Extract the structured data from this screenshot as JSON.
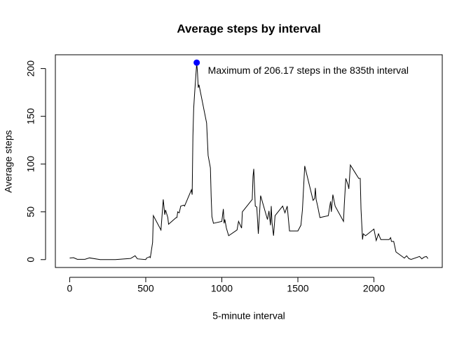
{
  "chart_data": {
    "type": "line",
    "title": "Average steps by interval",
    "x_label": "5-minute interval",
    "y_label": "Average steps",
    "xlim": [
      -94.2,
      2449.2
    ],
    "ylim": [
      -8.25,
      214.42
    ],
    "xticks": [
      0,
      500,
      1000,
      1500,
      2000
    ],
    "yticks": [
      0,
      50,
      100,
      150,
      200
    ],
    "grid": false,
    "x": [
      0,
      25,
      50,
      100,
      130,
      200,
      300,
      400,
      430,
      445,
      500,
      505,
      525,
      530,
      545,
      550,
      600,
      615,
      625,
      630,
      645,
      650,
      700,
      705,
      710,
      720,
      730,
      750,
      755,
      800,
      805,
      810,
      815,
      820,
      835,
      840,
      845,
      850,
      900,
      910,
      925,
      930,
      935,
      945,
      1000,
      1010,
      1015,
      1020,
      1030,
      1045,
      1100,
      1110,
      1130,
      1135,
      1150,
      1200,
      1205,
      1210,
      1220,
      1230,
      1240,
      1255,
      1300,
      1310,
      1320,
      1325,
      1330,
      1340,
      1350,
      1400,
      1415,
      1430,
      1445,
      1500,
      1520,
      1530,
      1545,
      1600,
      1610,
      1615,
      1620,
      1630,
      1645,
      1700,
      1715,
      1720,
      1730,
      1745,
      1800,
      1805,
      1815,
      1830,
      1835,
      1845,
      1900,
      1910,
      1915,
      1925,
      1930,
      1945,
      2000,
      2015,
      2030,
      2045,
      2100,
      2110,
      2115,
      2130,
      2145,
      2200,
      2215,
      2230,
      2245,
      2300,
      2315,
      2330,
      2345,
      2355
    ],
    "series": [
      {
        "name": "Average steps",
        "color": "#000000",
        "values": [
          1.7,
          2,
          0.3,
          0.3,
          1.8,
          0,
          0,
          1.2,
          4,
          0.8,
          0,
          1.6,
          3,
          2.1,
          18,
          46,
          31,
          63,
          47,
          52,
          44,
          37,
          44,
          44,
          50,
          49,
          56,
          57,
          56,
          73,
          68,
          129,
          158,
          171,
          206.17,
          196,
          180,
          183,
          143,
          109,
          96,
          66,
          45,
          38,
          40,
          53,
          38,
          42,
          33,
          25,
          31,
          40,
          33,
          50,
          53,
          63,
          87,
          95,
          56,
          55,
          27,
          67,
          42,
          51,
          36,
          56,
          39,
          25,
          46,
          56,
          49,
          56,
          30,
          30,
          36,
          52,
          98,
          62,
          64,
          75,
          63,
          56,
          44,
          46,
          61,
          50,
          68,
          56,
          40,
          57,
          85,
          78,
          74,
          99,
          85,
          85,
          53,
          21,
          27,
          25,
          32,
          20,
          27,
          21,
          21,
          23,
          19,
          19,
          8,
          1.6,
          4,
          1,
          0.2,
          3.3,
          0.8,
          2.6,
          3.3,
          1.1
        ]
      }
    ],
    "max_point": {
      "x": 835,
      "y": 206.17,
      "color": "#0000ff"
    },
    "annotation": "Maximum of 206.17 steps in the 835th interval"
  }
}
